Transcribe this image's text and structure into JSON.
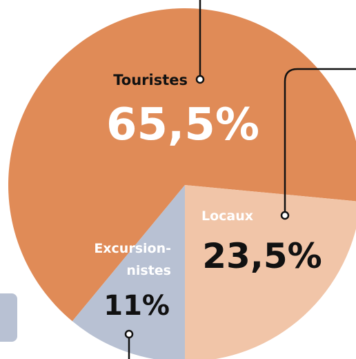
{
  "chart_data": {
    "type": "pie",
    "categories": [
      "Touristes",
      "Locaux",
      "Excursion-nistes"
    ],
    "values": [
      65.5,
      23.5,
      11
    ],
    "value_labels": [
      "65,5%",
      "23,5%",
      "11%"
    ],
    "colors": [
      "#e08b57",
      "#f1c5a8",
      "#b8c1d3"
    ]
  }
}
